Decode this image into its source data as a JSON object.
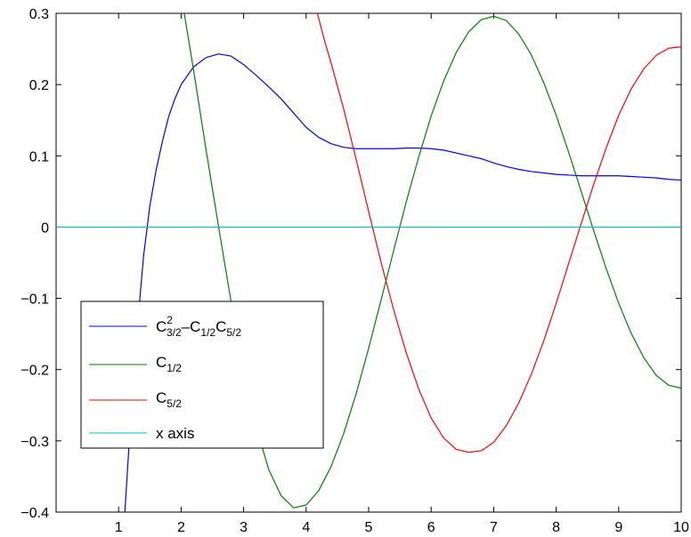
{
  "chart_data": {
    "type": "line",
    "title": "",
    "xlabel": "",
    "ylabel": "",
    "xlim": [
      0,
      10
    ],
    "ylim": [
      -0.4,
      0.3
    ],
    "xticks": [
      1,
      2,
      3,
      4,
      5,
      6,
      7,
      8,
      9,
      10
    ],
    "yticks": [
      -0.4,
      -0.3,
      -0.2,
      -0.1,
      0,
      0.1,
      0.2,
      0.3
    ],
    "grid": false,
    "legend_position": "lower-left",
    "series": [
      {
        "name": "C3/2^2 − C1/2·C5/2",
        "legend": {
          "base1": "C",
          "sup1": "2",
          "sub1": "3/2",
          "mid": "–C",
          "sub2": "1/2",
          "base3": "C",
          "sub3": "5/2"
        },
        "color": "#0000ff",
        "x": [
          1.1,
          1.2,
          1.3,
          1.4,
          1.5,
          1.6,
          1.7,
          1.8,
          1.9,
          2.0,
          2.2,
          2.4,
          2.6,
          2.8,
          3.0,
          3.2,
          3.4,
          3.6,
          3.8,
          4.0,
          4.2,
          4.4,
          4.6,
          4.8,
          5.0,
          5.2,
          5.4,
          5.6,
          5.8,
          6.0,
          6.2,
          6.4,
          6.6,
          6.8,
          7.0,
          7.2,
          7.4,
          7.6,
          7.8,
          8.0,
          8.2,
          8.4,
          8.6,
          8.8,
          9.0,
          9.2,
          9.4,
          9.6,
          9.8,
          10.0
        ],
        "y": [
          -0.4,
          -0.26,
          -0.14,
          -0.04,
          0.03,
          0.08,
          0.12,
          0.155,
          0.18,
          0.2,
          0.225,
          0.238,
          0.243,
          0.24,
          0.228,
          0.213,
          0.197,
          0.18,
          0.16,
          0.14,
          0.126,
          0.117,
          0.112,
          0.11,
          0.11,
          0.11,
          0.11,
          0.111,
          0.111,
          0.11,
          0.108,
          0.104,
          0.1,
          0.096,
          0.09,
          0.085,
          0.081,
          0.078,
          0.076,
          0.074,
          0.073,
          0.072,
          0.072,
          0.072,
          0.072,
          0.071,
          0.07,
          0.069,
          0.067,
          0.066
        ]
      },
      {
        "name": "C1/2",
        "legend": {
          "base": "C",
          "sub": "1/2"
        },
        "color": "#008000",
        "x": [
          2.05,
          2.2,
          2.4,
          2.6,
          2.8,
          3.0,
          3.2,
          3.4,
          3.6,
          3.8,
          4.0,
          4.2,
          4.4,
          4.6,
          4.8,
          5.0,
          5.2,
          5.4,
          5.6,
          5.8,
          6.0,
          6.2,
          6.4,
          6.6,
          6.8,
          7.0,
          7.2,
          7.4,
          7.6,
          7.8,
          8.0,
          8.2,
          8.4,
          8.6,
          8.8,
          9.0,
          9.2,
          9.4,
          9.6,
          9.8,
          10.0
        ],
        "y": [
          0.3,
          0.22,
          0.108,
          0.0,
          -0.105,
          -0.2,
          -0.28,
          -0.34,
          -0.377,
          -0.394,
          -0.39,
          -0.37,
          -0.336,
          -0.29,
          -0.234,
          -0.17,
          -0.102,
          -0.033,
          0.035,
          0.098,
          0.156,
          0.205,
          0.245,
          0.274,
          0.291,
          0.296,
          0.29,
          0.271,
          0.242,
          0.203,
          0.157,
          0.105,
          0.05,
          -0.005,
          -0.058,
          -0.107,
          -0.149,
          -0.183,
          -0.208,
          -0.222,
          -0.226
        ]
      },
      {
        "name": "C5/2",
        "legend": {
          "base": "C",
          "sub": "5/2"
        },
        "color": "#ff0000",
        "x": [
          4.18,
          4.3,
          4.4,
          4.6,
          4.8,
          5.0,
          5.2,
          5.4,
          5.6,
          5.8,
          6.0,
          6.2,
          6.4,
          6.6,
          6.8,
          7.0,
          7.2,
          7.4,
          7.6,
          7.8,
          8.0,
          8.2,
          8.4,
          8.6,
          8.8,
          9.0,
          9.2,
          9.4,
          9.6,
          9.8,
          10.0
        ],
        "y": [
          0.3,
          0.26,
          0.23,
          0.166,
          0.095,
          0.022,
          -0.05,
          -0.116,
          -0.176,
          -0.227,
          -0.268,
          -0.296,
          -0.312,
          -0.316,
          -0.314,
          -0.302,
          -0.279,
          -0.247,
          -0.207,
          -0.16,
          -0.107,
          -0.051,
          0.005,
          0.06,
          0.111,
          0.157,
          0.194,
          0.222,
          0.241,
          0.251,
          0.253
        ]
      },
      {
        "name": "x axis",
        "legend": {
          "text": "x axis"
        },
        "color": "#00bfbf",
        "x": [
          0,
          10
        ],
        "y": [
          0,
          0
        ]
      }
    ]
  }
}
